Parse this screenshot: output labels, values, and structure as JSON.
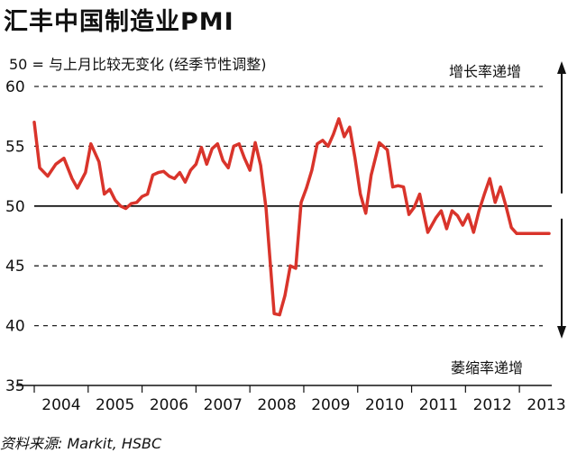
{
  "title": "汇丰中国制造业PMI",
  "subtitle": "50 = 与上月比较无变化 (经季节性调整)",
  "note_up": "增长率递增",
  "note_down": "萎缩率递增",
  "source": "资料来源: Markit, HSBC",
  "colors": {
    "line": "#d9342b",
    "grid": "#222222",
    "baseline": "#000000"
  },
  "chart_data": {
    "type": "line",
    "title": "汇丰中国制造业PMI",
    "ylim": [
      35,
      60
    ],
    "yticks": [
      35,
      40,
      45,
      50,
      55,
      60
    ],
    "ytick_labels": [
      "35",
      "40",
      "45",
      "50",
      "55",
      "60"
    ],
    "xlim": [
      2004.0,
      2013.6
    ],
    "xtick_labels": [
      "2004",
      "2005",
      "2006",
      "2007",
      "2008",
      "2009",
      "2010",
      "2011",
      "2012",
      "2013"
    ],
    "reference_line": 50,
    "grid": "dashed horizontal",
    "series": [
      {
        "x": [
          2004.0,
          2004.1,
          2004.25,
          2004.4,
          2004.55,
          2004.7,
          2004.8,
          2004.95,
          2005.05,
          2005.2,
          2005.3,
          2005.4,
          2005.5,
          2005.6,
          2005.7,
          2005.8,
          2005.9,
          2006.0,
          2006.1,
          2006.2,
          2006.3,
          2006.4,
          2006.5,
          2006.6,
          2006.7,
          2006.8,
          2006.9,
          2007.0,
          2007.1,
          2007.2,
          2007.3,
          2007.4,
          2007.5,
          2007.6,
          2007.7,
          2007.8,
          2007.9,
          2008.0,
          2008.1,
          2008.2,
          2008.3,
          2008.45,
          2008.55,
          2008.65,
          2008.75,
          2008.85,
          2008.95,
          2009.05,
          2009.15,
          2009.25,
          2009.35,
          2009.45,
          2009.55,
          2009.65,
          2009.75,
          2009.85,
          2009.95,
          2010.05,
          2010.15,
          2010.25,
          2010.4,
          2010.55,
          2010.65,
          2010.75,
          2010.85,
          2010.95,
          2011.05,
          2011.15,
          2011.3,
          2011.45,
          2011.55,
          2011.65,
          2011.75,
          2011.85,
          2011.95,
          2012.05,
          2012.15,
          2012.25,
          2012.35,
          2012.45,
          2012.55,
          2012.65,
          2012.75,
          2012.85,
          2012.95,
          2013.05,
          2013.15,
          2013.25,
          2013.35,
          2013.45,
          2013.55
        ],
        "y": [
          57.0,
          53.2,
          52.5,
          53.5,
          54.0,
          52.3,
          51.5,
          52.8,
          55.2,
          53.7,
          51.0,
          51.4,
          50.5,
          50.0,
          49.8,
          50.2,
          50.3,
          50.8,
          51.0,
          52.6,
          52.8,
          52.9,
          52.5,
          52.3,
          52.8,
          52.0,
          53.0,
          53.5,
          54.9,
          53.5,
          54.8,
          55.2,
          53.8,
          53.2,
          55.0,
          55.2,
          54.0,
          53.0,
          55.3,
          53.4,
          49.8,
          41.0,
          40.9,
          42.5,
          45.0,
          44.8,
          50.3,
          51.5,
          53.0,
          55.2,
          55.5,
          55.0,
          56.0,
          57.3,
          55.8,
          56.6,
          54.0,
          51.0,
          49.4,
          52.6,
          55.3,
          54.7,
          51.6,
          51.7,
          51.6,
          49.3,
          49.9,
          51.0,
          47.8,
          49.0,
          49.6,
          48.1,
          49.6,
          49.2,
          48.4,
          49.3,
          47.8,
          49.6,
          51.0,
          52.3,
          50.3,
          51.6,
          50.0,
          48.2,
          47.7,
          47.7,
          47.7,
          47.7,
          47.7,
          47.7,
          47.7
        ]
      }
    ]
  }
}
